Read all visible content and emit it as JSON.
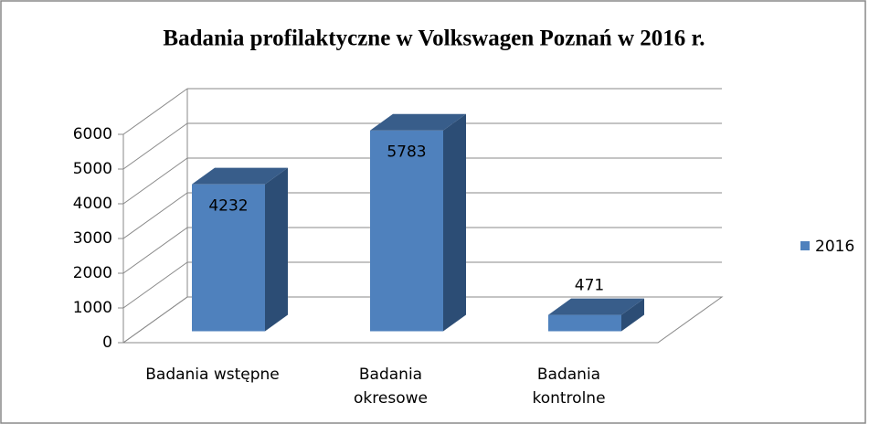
{
  "chart_data": {
    "type": "bar3d",
    "title": "Badania profilaktyczne w Volkswagen Poznań w 2016 r.",
    "categories": [
      "Badania wstępne",
      "Badania okresowe",
      "Badania kontrolne"
    ],
    "series": [
      {
        "name": "2016",
        "color": "#4f81bd",
        "values": [
          4232,
          5783,
          471
        ]
      }
    ],
    "ylim": [
      0,
      6000
    ],
    "yticks": [
      0,
      1000,
      2000,
      3000,
      4000,
      5000,
      6000
    ],
    "grid": true,
    "legend": "right"
  }
}
